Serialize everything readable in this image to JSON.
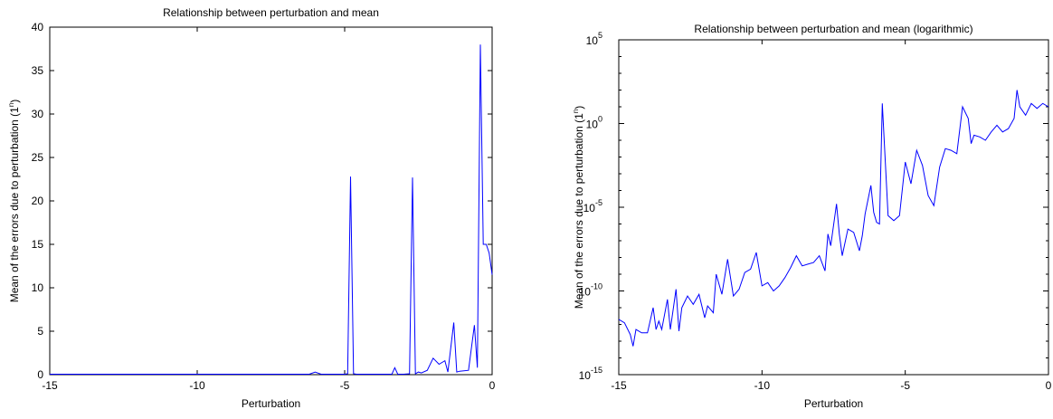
{
  "colors": {
    "series": "#0000ff",
    "axis": "#000000",
    "background": "#ffffff"
  },
  "chart_data": [
    {
      "type": "line",
      "title": "Relationship between perturbation and mean",
      "xlabel": "Perturbation",
      "ylabel": "Mean of the errors due to perturbation (1",
      "ylabel_sup": "n",
      "ylabel_close": ")",
      "xlim": [
        -15,
        0
      ],
      "ylim": [
        0,
        40
      ],
      "yscale": "linear",
      "grid": false,
      "xticks": [
        -15,
        -10,
        -5,
        0
      ],
      "xtick_labels": [
        "-15",
        "-10",
        "-5",
        "0"
      ],
      "yticks": [
        0,
        5,
        10,
        15,
        20,
        25,
        30,
        35,
        40
      ],
      "ytick_labels": [
        "0",
        "5",
        "10",
        "15",
        "20",
        "25",
        "30",
        "35",
        "40"
      ],
      "series": [
        {
          "x": [
            -15.0,
            -14.0,
            -13.0,
            -12.0,
            -11.0,
            -10.0,
            -9.0,
            -8.0,
            -7.0,
            -6.2,
            -6.0,
            -5.8,
            -5.0,
            -4.9,
            -4.8,
            -4.7,
            -4.6,
            -4.0,
            -3.4,
            -3.3,
            -3.2,
            -3.0,
            -2.8,
            -2.7,
            -2.6,
            -2.5,
            -2.4,
            -2.2,
            -2.0,
            -1.8,
            -1.6,
            -1.5,
            -1.3,
            -1.2,
            -1.1,
            -0.8,
            -0.6,
            -0.5,
            -0.4,
            -0.3,
            -0.2,
            -0.1,
            0.0
          ],
          "y": [
            0.05,
            0.05,
            0.05,
            0.05,
            0.05,
            0.05,
            0.05,
            0.05,
            0.05,
            0.05,
            0.3,
            0.05,
            0.05,
            0.1,
            22.8,
            0.1,
            0.05,
            0.05,
            0.05,
            0.8,
            0.05,
            0.05,
            0.1,
            22.7,
            0.1,
            0.3,
            0.2,
            0.5,
            1.9,
            1.2,
            1.6,
            0.3,
            6.0,
            0.3,
            0.4,
            0.5,
            5.7,
            0.8,
            38.0,
            15.0,
            15.0,
            14.0,
            11.5
          ]
        }
      ]
    },
    {
      "type": "line",
      "title": "Relationship between perturbation and mean (logarithmic)",
      "xlabel": "Perturbation",
      "ylabel": "Mean of the errors due to perturbation (1",
      "ylabel_sup": "n",
      "ylabel_close": ")",
      "xlim": [
        -15,
        0
      ],
      "ylim_exp": [
        -15,
        5
      ],
      "yscale": "log",
      "grid": false,
      "xticks": [
        -15,
        -10,
        -5,
        0
      ],
      "xtick_labels": [
        "-15",
        "-10",
        "-5",
        "0"
      ],
      "yticks_exp": [
        -15,
        -10,
        -5,
        0,
        5
      ],
      "ytick_base": "10",
      "ytick_exp_labels": [
        "-15",
        "-10",
        "-5",
        "0",
        "5"
      ],
      "series": [
        {
          "x": [
            -15.0,
            -14.8,
            -14.6,
            -14.5,
            -14.4,
            -14.2,
            -14.0,
            -13.8,
            -13.7,
            -13.6,
            -13.5,
            -13.3,
            -13.2,
            -13.0,
            -12.9,
            -12.8,
            -12.6,
            -12.4,
            -12.2,
            -12.0,
            -11.9,
            -11.7,
            -11.6,
            -11.4,
            -11.2,
            -11.0,
            -10.8,
            -10.6,
            -10.4,
            -10.2,
            -10.0,
            -9.8,
            -9.6,
            -9.4,
            -9.2,
            -9.0,
            -8.8,
            -8.6,
            -8.4,
            -8.2,
            -8.0,
            -7.8,
            -7.7,
            -7.6,
            -7.4,
            -7.3,
            -7.2,
            -7.0,
            -6.8,
            -6.6,
            -6.5,
            -6.4,
            -6.2,
            -6.1,
            -6.0,
            -5.9,
            -5.8,
            -5.6,
            -5.4,
            -5.2,
            -5.0,
            -4.8,
            -4.6,
            -4.4,
            -4.2,
            -4.0,
            -3.8,
            -3.6,
            -3.4,
            -3.2,
            -3.0,
            -2.8,
            -2.7,
            -2.6,
            -2.4,
            -2.2,
            -2.0,
            -1.8,
            -1.6,
            -1.4,
            -1.2,
            -1.1,
            -1.0,
            -0.8,
            -0.6,
            -0.4,
            -0.2,
            0.0
          ],
          "y_exp": [
            -11.7,
            -11.9,
            -12.6,
            -13.3,
            -12.3,
            -12.5,
            -12.5,
            -11.0,
            -12.3,
            -11.8,
            -12.3,
            -10.5,
            -12.3,
            -9.9,
            -12.4,
            -11.0,
            -10.3,
            -10.8,
            -10.2,
            -11.6,
            -10.9,
            -11.3,
            -9.0,
            -10.2,
            -8.1,
            -10.3,
            -9.9,
            -8.9,
            -8.7,
            -7.7,
            -9.7,
            -9.5,
            -10.0,
            -9.7,
            -9.2,
            -8.6,
            -7.9,
            -8.5,
            -8.4,
            -8.3,
            -7.9,
            -8.8,
            -6.6,
            -7.3,
            -4.8,
            -6.6,
            -7.9,
            -6.3,
            -6.5,
            -7.6,
            -6.7,
            -5.4,
            -3.7,
            -5.3,
            -5.9,
            -6.0,
            1.2,
            -5.5,
            -5.8,
            -5.5,
            -2.3,
            -3.6,
            -1.6,
            -2.5,
            -4.3,
            -4.9,
            -2.6,
            -1.5,
            -1.6,
            -1.8,
            1.0,
            0.3,
            -1.2,
            -0.7,
            -0.8,
            -1.0,
            -0.5,
            -0.1,
            -0.5,
            -0.3,
            0.3,
            2.0,
            1.0,
            0.5,
            1.2,
            0.9,
            1.2,
            1.0
          ]
        }
      ]
    }
  ]
}
